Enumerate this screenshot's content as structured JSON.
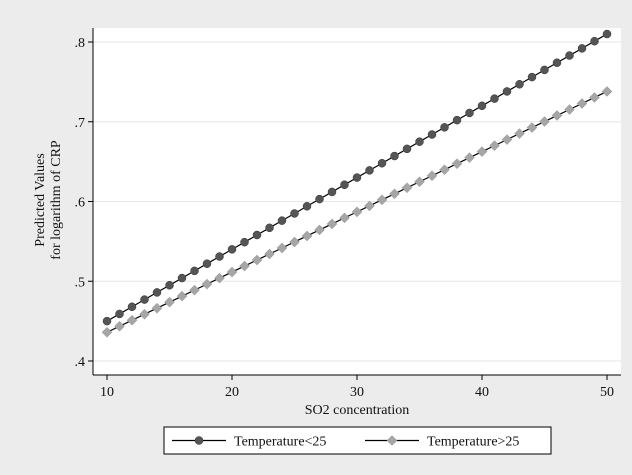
{
  "chart_data": {
    "type": "line",
    "xlabel": "SO2 concentration",
    "ylabel_lines": [
      "Predicted Values",
      "for logarithm of CRP"
    ],
    "xlim": [
      10,
      50
    ],
    "ylim": [
      0.4,
      0.8
    ],
    "x_ticks": [
      10,
      20,
      30,
      40,
      50
    ],
    "x_tick_labels": [
      "10",
      "20",
      "30",
      "40",
      "50"
    ],
    "y_ticks": [
      0.4,
      0.5,
      0.6,
      0.7,
      0.8
    ],
    "y_tick_labels": [
      ".4",
      ".5",
      ".6",
      ".7",
      ".8"
    ],
    "grid": "horizontal",
    "legend_position": "bottom",
    "x": [
      10,
      11,
      12,
      13,
      14,
      15,
      16,
      17,
      18,
      19,
      20,
      21,
      22,
      23,
      24,
      25,
      26,
      27,
      28,
      29,
      30,
      31,
      32,
      33,
      34,
      35,
      36,
      37,
      38,
      39,
      40,
      41,
      42,
      43,
      44,
      45,
      46,
      47,
      48,
      49,
      50
    ],
    "series": [
      {
        "name": "Temperature<25",
        "marker": "circle",
        "color": "#555555",
        "y_start": 0.45,
        "y_end": 0.81
      },
      {
        "name": "Temperature>25",
        "marker": "diamond",
        "color": "#a6a6a6",
        "y_start": 0.436,
        "y_end": 0.738
      }
    ]
  },
  "colors": {
    "background": "#ececec",
    "plot_background": "#ffffff",
    "grid": "#e6e6e6",
    "line": "#000000"
  }
}
